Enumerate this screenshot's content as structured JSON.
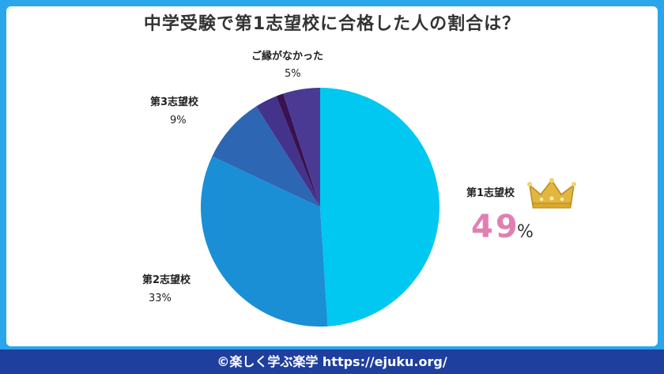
{
  "title": "中学受験で第1志望校に合格した人の割合は？",
  "footer": "©楽しく学ぶ楽学 https://ejuku.org/",
  "colors": {
    "background": "#29a6ec",
    "footer": "#1f3f9e",
    "highlight_pct": "#e080b2",
    "crown": "#e2b640"
  },
  "icons": [
    "crown-icon"
  ],
  "chart_data": {
    "type": "pie",
    "title": "中学受験で第1志望校に合格した人の割合は？",
    "slices": [
      {
        "label": "第1志望校",
        "value": 49,
        "value_label": "49",
        "unit": "%",
        "color": "#00c8f0"
      },
      {
        "label": "第2志望校",
        "value": 33,
        "value_label": "33%",
        "color": "#1a8fd6"
      },
      {
        "label": "第3志望校",
        "value": 9,
        "value_label": "9%",
        "color": "#2d67b4"
      },
      {
        "label": "",
        "value": 3,
        "value_label": "",
        "color": "#44338a"
      },
      {
        "label": "",
        "value": 1,
        "value_label": "",
        "color": "#3a1251"
      },
      {
        "label": "ご縁がなかった",
        "value": 5,
        "value_label": "5%",
        "color": "#4a3a94"
      }
    ]
  }
}
